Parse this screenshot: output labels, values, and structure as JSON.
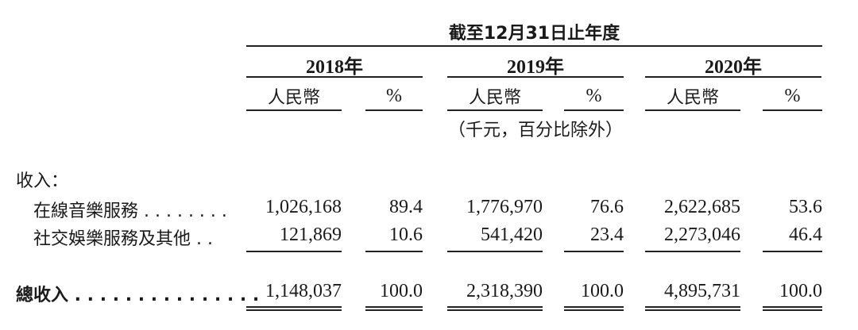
{
  "header": {
    "period_title": "截至12月31日止年度",
    "years": [
      {
        "label": "2018年",
        "rmb": "人民幣",
        "pct": "%"
      },
      {
        "label": "2019年",
        "rmb": "人民幣",
        "pct": "%"
      },
      {
        "label": "2020年",
        "rmb": "人民幣",
        "pct": "%"
      }
    ],
    "unit_note": "（千元，百分比除外）"
  },
  "section_label": "收入：",
  "rows": [
    {
      "label": "在線音樂服務 . . . . . . . .",
      "values": [
        "1,026,168",
        "89.4",
        "1,776,970",
        "76.6",
        "2,622,685",
        "53.6"
      ]
    },
    {
      "label": "社交娛樂服務及其他 . .",
      "values": [
        "121,869",
        "10.6",
        "541,420",
        "23.4",
        "2,273,046",
        "46.4"
      ]
    }
  ],
  "total": {
    "label": "總收入 . . . . . . . . . . . . . . .",
    "values": [
      "1,148,037",
      "100.0",
      "2,318,390",
      "100.0",
      "4,895,731",
      "100.0"
    ]
  }
}
